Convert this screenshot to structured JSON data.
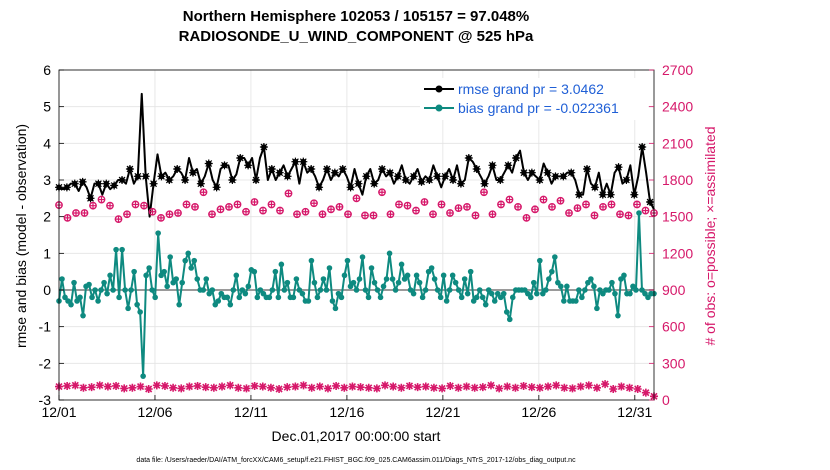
{
  "chart_data": {
    "type": "line",
    "title": "Northern Hemisphere 102053 / 105157 = 97.048%",
    "subtitle": "RADIOSONDE_U_WIND_COMPONENT @ 525 hPa",
    "xlabel": "Dec.01,2017 00:00:00 start",
    "ylabel": "rmse and bias (model - observation)",
    "y2label": "# of obs: o=possible; ×=assimilated",
    "footer": "data file: /Users/raeder/DAI/ATM_forcXX/CAM6_setup/f.e21.FHIST_BGC.f09_025.CAM6assim.011/Diags_NTrS_2017-12/obs_diag_output.nc",
    "xlim": [
      1,
      32
    ],
    "ylim": [
      -3,
      6
    ],
    "y2lim": [
      0,
      2700
    ],
    "x_ticks": [
      1,
      6,
      11,
      16,
      21,
      26,
      31
    ],
    "x_tick_labels": [
      "12/01",
      "12/06",
      "12/11",
      "12/16",
      "12/21",
      "12/26",
      "12/31"
    ],
    "y_ticks": [
      -3,
      -2,
      -1,
      0,
      1,
      2,
      3,
      4,
      5,
      6
    ],
    "y2_ticks": [
      0,
      300,
      600,
      900,
      1200,
      1500,
      1800,
      2100,
      2400,
      2700
    ],
    "series": [
      {
        "name": "rmse grand pr = 3.0462",
        "color": "#000000",
        "axis": "left",
        "marker": "star",
        "values": [
          2.8,
          2.75,
          2.8,
          2.9,
          2.9,
          2.7,
          2.95,
          2.8,
          2.5,
          2.9,
          2.9,
          2.6,
          2.9,
          2.75,
          2.85,
          3.0,
          3.0,
          2.9,
          3.3,
          2.9,
          3.1,
          5.35,
          3.1,
          2.0,
          2.9,
          3.7,
          3.1,
          3.2,
          3.0,
          3.1,
          3.3,
          3.2,
          3.0,
          3.6,
          3.2,
          3.3,
          2.9,
          3.1,
          3.45,
          3.0,
          2.8,
          3.3,
          3.4,
          3.4,
          3.0,
          3.15,
          3.6,
          3.6,
          3.4,
          3.6,
          3.0,
          3.6,
          3.9,
          3.0,
          3.3,
          3.0,
          3.2,
          3.4,
          3.1,
          3.3,
          3.5,
          2.9,
          3.5,
          3.2,
          3.3,
          3.1,
          2.8,
          3.0,
          3.3,
          3.0,
          3.2,
          3.1,
          3.3,
          3.1,
          2.8,
          3.3,
          2.9,
          2.6,
          3.1,
          3.3,
          2.9,
          3.0,
          3.3,
          3.1,
          3.2,
          2.9,
          3.1,
          3.4,
          3.0,
          2.9,
          3.1,
          3.3,
          2.95,
          3.1,
          3.0,
          3.4,
          3.1,
          2.8,
          3.1,
          3.3,
          3.0,
          3.4,
          2.9,
          3.0,
          3.6,
          3.5,
          3.3,
          3.1,
          2.9,
          3.1,
          3.4,
          3.0,
          3.0,
          3.2,
          3.4,
          3.2,
          3.6,
          3.8,
          3.2,
          3.0,
          3.2,
          3.1,
          3.0,
          3.45,
          3.2,
          2.9,
          3.1,
          3.1,
          3.1,
          3.2,
          3.2,
          3.0,
          2.6,
          2.6,
          3.3,
          2.9,
          2.8,
          3.2,
          2.6,
          2.9,
          2.6,
          3.2,
          3.35,
          2.9,
          3.0,
          3.4,
          2.6,
          3.1,
          3.9,
          3.2,
          2.4,
          2.2
        ],
        "marker_every": 2
      },
      {
        "name": "bias grand pr = -0.022361",
        "color": "#0e8a80",
        "axis": "left",
        "marker": "circle",
        "values": [
          -0.3,
          0.3,
          -0.2,
          -0.3,
          -0.4,
          0.2,
          -0.3,
          -0.2,
          -0.7,
          0.1,
          0.15,
          -0.2,
          0.0,
          -0.3,
          0.0,
          0.2,
          -0.1,
          0.4,
          0.0,
          1.1,
          -0.2,
          1.1,
          0.0,
          -0.5,
          0.0,
          0.5,
          -0.4,
          -0.6,
          -2.35,
          0.4,
          0.6,
          0.0,
          -0.2,
          1.55,
          0.4,
          0.5,
          0.1,
          0.9,
          0.2,
          0.3,
          -0.4,
          0.2,
          0.8,
          1.0,
          0.6,
          0.8,
          0.3,
          0.0,
          0.0,
          0.3,
          -0.1,
          0.0,
          -0.4,
          -0.3,
          -0.1,
          -0.2,
          -0.2,
          -0.4,
          0.0,
          0.4,
          -0.2,
          0.0,
          -0.1,
          0.1,
          0.55,
          0.5,
          -0.2,
          0.0,
          -0.1,
          -0.2,
          -0.2,
          0.0,
          0.5,
          -0.2,
          0.7,
          0.0,
          0.2,
          -0.2,
          -0.2,
          0.3,
          0.0,
          -0.1,
          -0.3,
          -0.3,
          0.8,
          0.2,
          -0.2,
          0.0,
          0.3,
          0.0,
          0.6,
          -0.3,
          -0.5,
          -0.1,
          -0.2,
          0.4,
          0.8,
          0.1,
          0.2,
          0.0,
          0.3,
          0.9,
          0.0,
          -0.2,
          0.6,
          0.2,
          0.0,
          -0.2,
          0.1,
          0.3,
          1.0,
          0.3,
          0.0,
          0.2,
          0.7,
          0.3,
          0.4,
          0.0,
          -0.1,
          0.4,
          0.2,
          -0.2,
          0.0,
          0.5,
          0.6,
          0.3,
          0.0,
          -0.2,
          0.4,
          -0.3,
          0.0,
          0.4,
          0.2,
          0.0,
          -0.2,
          0.3,
          -0.1,
          0.5,
          -0.3,
          -0.2,
          0.0,
          -0.2,
          -0.4,
          0.0,
          -0.1,
          -0.3,
          -0.1,
          -0.2,
          -0.1,
          -0.6,
          -0.8,
          -0.2,
          0.0,
          0.0,
          0.0,
          0.0,
          -0.1,
          -0.2,
          0.2,
          -0.1,
          0.8,
          -0.1,
          0.0,
          0.3,
          0.5,
          0.9,
          0.2,
          0.1,
          -0.3,
          0.1,
          -0.3,
          -0.3,
          -0.3,
          0.0,
          -0.2,
          0.0,
          0.2,
          0.3,
          0.1,
          -0.5,
          0.0,
          -0.1,
          0.0,
          0.0,
          0.2,
          -0.1,
          -0.7,
          0.3,
          0.4,
          -0.1,
          -0.1,
          0.1,
          0.0,
          2.1,
          0.0,
          -0.1,
          -0.2,
          -0.1,
          -0.1
        ],
        "marker_every": 1
      },
      {
        "name": "possible",
        "color": "#d6186a",
        "axis": "right",
        "marker": "o",
        "values": [
          1595,
          1490,
          1530,
          1530,
          1590,
          1640,
          1590,
          1480,
          1520,
          1600,
          1590,
          1540,
          1490,
          1520,
          1530,
          1600,
          1580,
          1700,
          1520,
          1560,
          1580,
          1600,
          1540,
          1620,
          1550,
          1600,
          1550,
          1690,
          1520,
          1540,
          1610,
          1520,
          1560,
          1580,
          1520,
          1650,
          1510,
          1510,
          1700,
          1520,
          1600,
          1590,
          1550,
          1620,
          1520,
          1600,
          1530,
          1570,
          1580,
          1510,
          1700,
          1520,
          1600,
          1640,
          1580,
          1490,
          1560,
          1640,
          1580,
          1630,
          1530,
          1570,
          1600,
          1510,
          1580,
          1600,
          1520,
          1510,
          1600,
          1550,
          1530
        ],
        "marker_every": 1
      },
      {
        "name": "assimilated",
        "color": "#d6186a",
        "axis": "right",
        "marker": "x",
        "values": [
          110,
          115,
          120,
          100,
          105,
          120,
          110,
          115,
          95,
          100,
          110,
          90,
          120,
          115,
          100,
          95,
          110,
          115,
          105,
          100,
          110,
          120,
          100,
          95,
          115,
          110,
          100,
          90,
          105,
          110,
          120,
          100,
          110,
          95,
          115,
          100,
          110,
          105,
          100,
          95,
          120,
          110,
          100,
          115,
          105,
          110,
          100,
          95,
          115,
          100,
          110,
          100,
          105,
          120,
          95,
          110,
          100,
          115,
          105,
          100,
          110,
          120,
          100,
          95,
          110,
          120,
          100,
          130,
          90,
          110,
          100,
          90,
          60,
          30
        ],
        "marker_every": 1
      }
    ]
  }
}
